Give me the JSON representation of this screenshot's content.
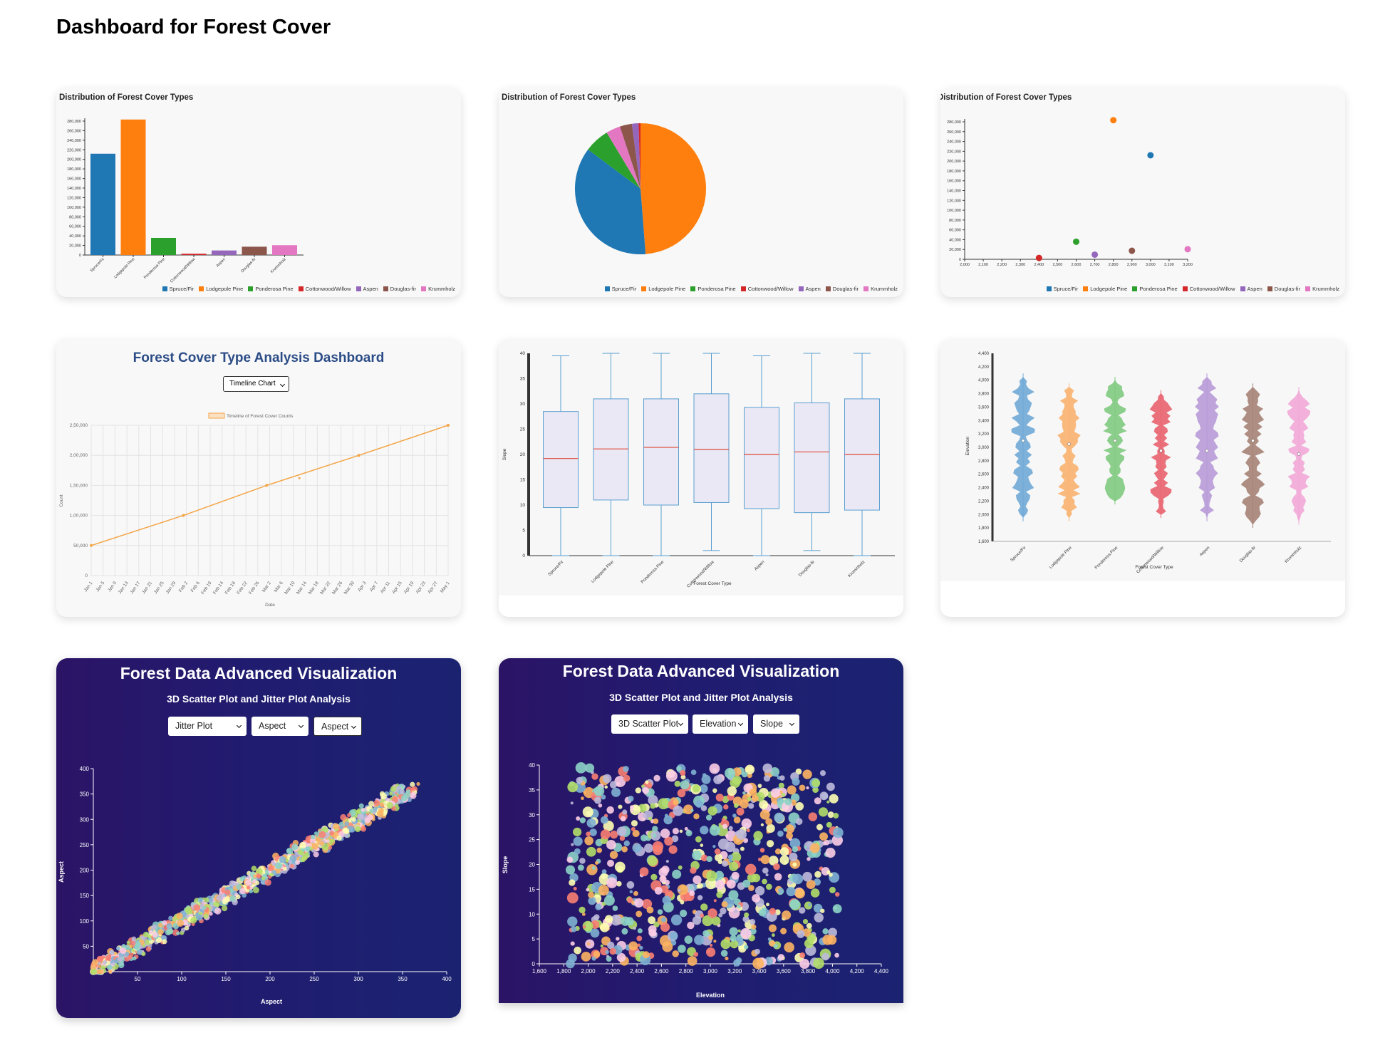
{
  "page": {
    "title": "Dashboard for Forest Cover"
  },
  "colors": {
    "types": [
      "#1f77b4",
      "#ff7f0e",
      "#2ca02c",
      "#d62728",
      "#9467bd",
      "#8c564b",
      "#e377c2"
    ],
    "violin": [
      "#6fa8d6",
      "#f9b16e",
      "#7fc97f",
      "#e8626e",
      "#b79ad6",
      "#a58275",
      "#f1a7d6"
    ],
    "line": "#f4a445",
    "box_fill": "#e9e8f4",
    "box_stroke": "#5a9fd0",
    "median": "#e04b3a",
    "jitter": [
      "#8dd3c7",
      "#ffffb3",
      "#bebada",
      "#fb8072",
      "#80b1d3",
      "#fdb462",
      "#b3de69",
      "#fccde5"
    ]
  },
  "cover_types": [
    "Spruce/Fir",
    "Lodgepole Pine",
    "Ponderosa Pine",
    "Cottonwood/Willow",
    "Aspen",
    "Douglas-fir",
    "Krummholz"
  ],
  "bar_card": {
    "title": "Distribution of Forest Cover Types"
  },
  "pie_card": {
    "title": "Distribution of Forest Cover Types"
  },
  "scatter_card": {
    "title": "Distribution of Forest Cover Types"
  },
  "timeline_card": {
    "heading": "Forest Cover Type Analysis Dashboard",
    "select_value": "Timeline Chart",
    "legend_label": "Timeline of Forest Cover Counts",
    "xlabel": "Date",
    "ylabel": "Count"
  },
  "box_card": {
    "xlabel": "Forest Cover Type",
    "ylabel": "Slope"
  },
  "violin_card": {
    "xlabel": "Forest Cover Type",
    "ylabel": "Elevation"
  },
  "jitter_card": {
    "title": "Forest Data Advanced Visualization",
    "subtitle": "3D Scatter Plot and Jitter Plot Analysis",
    "selects": [
      "Jitter Plot",
      "Aspect",
      "Aspect"
    ],
    "xlabel": "Aspect",
    "ylabel": "Aspect"
  },
  "scatter3d_card": {
    "title": "Forest Data Advanced Visualization",
    "subtitle": "3D Scatter Plot and Jitter Plot Analysis",
    "selects": [
      "3D Scatter Plot",
      "Elevation",
      "Slope"
    ],
    "xlabel": "Elevation",
    "ylabel": "Slope"
  },
  "chart_data": [
    {
      "type": "bar",
      "title": "Distribution of Forest Cover Types",
      "categories": [
        "Spruce/Fir",
        "Lodgepole Pine",
        "Ponderosa Pine",
        "Cottonwood/Willow",
        "Aspen",
        "Douglas-fir",
        "Krummholz"
      ],
      "values": [
        211840,
        283301,
        35754,
        2747,
        9493,
        17367,
        20510
      ],
      "ylim": [
        0,
        280000
      ],
      "yticks": [
        "0",
        "20,000",
        "40,000",
        "60,000",
        "80,000",
        "100,000",
        "120,000",
        "140,000",
        "160,000",
        "180,000",
        "200,000",
        "220,000",
        "240,000",
        "260,000",
        "280,000"
      ],
      "legend": "bottom"
    },
    {
      "type": "pie",
      "title": "Distribution of Forest Cover Types",
      "categories": [
        "Spruce/Fir",
        "Lodgepole Pine",
        "Ponderosa Pine",
        "Cottonwood/Willow",
        "Aspen",
        "Douglas-fir",
        "Krummholz"
      ],
      "values": [
        211840,
        283301,
        35754,
        2747,
        9493,
        17367,
        20510
      ],
      "legend": "bottom"
    },
    {
      "type": "scatter",
      "title": "Distribution of Forest Cover Types",
      "categories": [
        "Spruce/Fir",
        "Lodgepole Pine",
        "Ponderosa Pine",
        "Cottonwood/Willow",
        "Aspen",
        "Douglas-fir",
        "Krummholz"
      ],
      "x": [
        3000,
        2800,
        2600,
        2400,
        2700,
        2900,
        3200
      ],
      "y": [
        211840,
        283301,
        35754,
        2747,
        9493,
        17367,
        20510
      ],
      "xlim": [
        2000,
        3200
      ],
      "ylim": [
        0,
        280000
      ],
      "xticks": [
        "2,000",
        "2,100",
        "2,200",
        "2,300",
        "2,400",
        "2,500",
        "2,600",
        "2,700",
        "2,800",
        "2,900",
        "3,000",
        "3,100",
        "3,200"
      ],
      "yticks": [
        "0",
        "20,000",
        "40,000",
        "60,000",
        "80,000",
        "100,000",
        "120,000",
        "140,000",
        "160,000",
        "180,000",
        "200,000",
        "220,000",
        "240,000",
        "260,000",
        "280,000"
      ],
      "legend": "bottom"
    },
    {
      "type": "line",
      "title": "Forest Cover Type Analysis Dashboard",
      "series_label": "Timeline of Forest Cover Counts",
      "x": [
        "Jan 1",
        "Feb 1",
        "Mar 1",
        "Apr 1",
        "May 1"
      ],
      "y": [
        50000,
        100000,
        150000,
        200000,
        250000
      ],
      "xticks": [
        "Jan 1",
        "Jan 5",
        "Jan 9",
        "Jan 13",
        "Jan 17",
        "Jan 21",
        "Jan 25",
        "Jan 29",
        "Feb 2",
        "Feb 6",
        "Feb 10",
        "Feb 14",
        "Feb 18",
        "Feb 22",
        "Feb 26",
        "Mar 2",
        "Mar 6",
        "Mar 10",
        "Mar 14",
        "Mar 18",
        "Mar 22",
        "Mar 26",
        "Mar 30",
        "Apr 3",
        "Apr 7",
        "Apr 11",
        "Apr 15",
        "Apr 19",
        "Apr 23",
        "Apr 27",
        "May 1"
      ],
      "yticks": [
        "0",
        "50,000",
        "1,00,000",
        "1,50,000",
        "2,00,000",
        "2,50,000"
      ],
      "ylim": [
        0,
        250000
      ],
      "xlabel": "Date",
      "ylabel": "Count"
    },
    {
      "type": "box",
      "xlabel": "Forest Cover Type",
      "ylabel": "Slope",
      "categories": [
        "Spruce/Fir",
        "Lodgepole Pine",
        "Ponderosa Pine",
        "Cottonwood/Willow",
        "Aspen",
        "Douglas-fir",
        "Krummholz"
      ],
      "min": [
        0,
        0,
        0,
        1,
        0,
        1,
        0
      ],
      "q1": [
        9.5,
        11,
        10,
        10.5,
        9.3,
        8.5,
        9
      ],
      "median": [
        19.2,
        21.1,
        21.4,
        21.0,
        20.0,
        20.5,
        20.0
      ],
      "q3": [
        28.5,
        31,
        31,
        32,
        29.3,
        30.2,
        31
      ],
      "max": [
        39.5,
        40,
        40,
        40,
        39.5,
        40,
        40
      ],
      "ylim": [
        0,
        40
      ],
      "yticks": [
        "0",
        "5",
        "10",
        "15",
        "20",
        "25",
        "30",
        "35",
        "40"
      ]
    },
    {
      "type": "violin",
      "xlabel": "Forest Cover Type",
      "ylabel": "Elevation",
      "categories": [
        "Spruce/Fir",
        "Lodgepole Pine",
        "Ponderosa Pine",
        "Cottonwood/Willow",
        "Aspen",
        "Douglas-fir",
        "Krummholz"
      ],
      "range_min": [
        1900,
        1900,
        2150,
        1950,
        1900,
        1800,
        1850
      ],
      "range_max": [
        4100,
        3950,
        4050,
        3850,
        4100,
        3950,
        3900
      ],
      "median": [
        3100,
        3050,
        3100,
        2950,
        2950,
        3100,
        2900
      ],
      "ylim": [
        1600,
        4400
      ],
      "yticks": [
        "1,600",
        "1,800",
        "2,000",
        "2,200",
        "2,400",
        "2,600",
        "2,800",
        "3,000",
        "3,200",
        "3,400",
        "3,600",
        "3,800",
        "4,000",
        "4,200",
        "4,400"
      ]
    },
    {
      "type": "scatter",
      "title": "Jitter Plot",
      "xlabel": "Aspect",
      "ylabel": "Aspect",
      "xlim": [
        0,
        400
      ],
      "ylim": [
        0,
        400
      ],
      "xticks": [
        "50",
        "100",
        "150",
        "200",
        "250",
        "300",
        "350",
        "400"
      ],
      "yticks": [
        "50",
        "100",
        "150",
        "200",
        "250",
        "300",
        "350",
        "400"
      ]
    },
    {
      "type": "scatter",
      "title": "3D Scatter Plot",
      "xlabel": "Elevation",
      "ylabel": "Slope",
      "xlim": [
        1600,
        4400
      ],
      "ylim": [
        0,
        40
      ],
      "xticks": [
        "1,600",
        "1,800",
        "2,000",
        "2,200",
        "2,400",
        "2,600",
        "2,800",
        "3,000",
        "3,200",
        "3,400",
        "3,600",
        "3,800",
        "4,000",
        "4,200",
        "4,400"
      ],
      "yticks": [
        "0",
        "5",
        "10",
        "15",
        "20",
        "25",
        "30",
        "35",
        "40"
      ]
    }
  ]
}
